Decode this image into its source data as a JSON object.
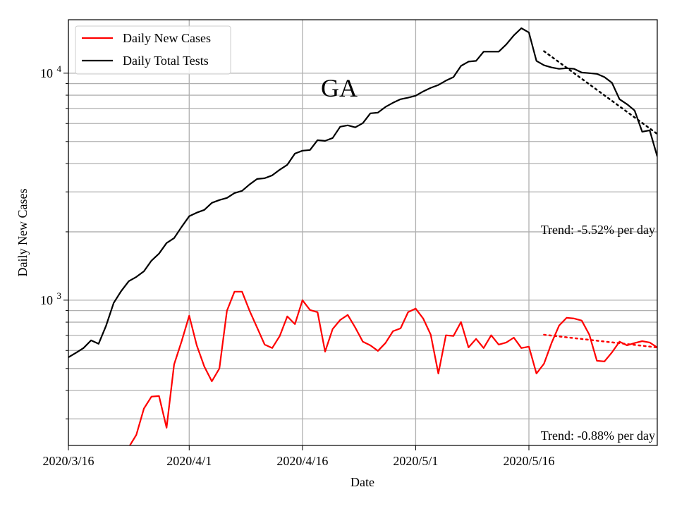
{
  "chart_data": {
    "type": "line",
    "title": "GA",
    "xlabel": "Date",
    "ylabel": "Daily New Cases",
    "yscale": "log",
    "ylim": [
      229,
      17200
    ],
    "grid": true,
    "legend_placement": "top-left",
    "x_ticks": [
      "2020/3/16",
      "2020/4/1",
      "2020/4/16",
      "2020/5/1",
      "2020/5/16"
    ],
    "y_ticks": [
      {
        "value": 1000,
        "base": "10",
        "exp": "3"
      },
      {
        "value": 10000,
        "base": "10",
        "exp": "4"
      }
    ],
    "dates": [
      "2020/3/16",
      "2020/3/17",
      "2020/3/18",
      "2020/3/19",
      "2020/3/20",
      "2020/3/21",
      "2020/3/22",
      "2020/3/23",
      "2020/3/24",
      "2020/3/25",
      "2020/3/26",
      "2020/3/27",
      "2020/3/28",
      "2020/3/29",
      "2020/3/30",
      "2020/3/31",
      "2020/4/1",
      "2020/4/2",
      "2020/4/3",
      "2020/4/4",
      "2020/4/5",
      "2020/4/6",
      "2020/4/7",
      "2020/4/8",
      "2020/4/9",
      "2020/4/10",
      "2020/4/11",
      "2020/4/12",
      "2020/4/13",
      "2020/4/14",
      "2020/4/15",
      "2020/4/16",
      "2020/4/17",
      "2020/4/18",
      "2020/4/19",
      "2020/4/20",
      "2020/4/21",
      "2020/4/22",
      "2020/4/23",
      "2020/4/24",
      "2020/4/25",
      "2020/4/26",
      "2020/4/27",
      "2020/4/28",
      "2020/4/29",
      "2020/4/30",
      "2020/5/1",
      "2020/5/2",
      "2020/5/3",
      "2020/5/4",
      "2020/5/5",
      "2020/5/6",
      "2020/5/7",
      "2020/5/8",
      "2020/5/9",
      "2020/5/10",
      "2020/5/11",
      "2020/5/12",
      "2020/5/13",
      "2020/5/14",
      "2020/5/15",
      "2020/5/16",
      "2020/5/17",
      "2020/5/18",
      "2020/5/19",
      "2020/5/20",
      "2020/5/21",
      "2020/5/22",
      "2020/5/23",
      "2020/5/24",
      "2020/5/25",
      "2020/5/26",
      "2020/5/27",
      "2020/5/28",
      "2020/5/29",
      "2020/5/30",
      "2020/5/31",
      "2020/6/1",
      "2020/6/2"
    ],
    "series": [
      {
        "name": "Daily New Cases",
        "color": "#ff0000",
        "values": [
          null,
          null,
          null,
          null,
          null,
          null,
          null,
          null,
          225,
          255,
          333,
          376,
          378,
          274,
          521,
          660,
          854,
          632,
          510,
          439,
          500,
          898,
          1090,
          1090,
          898,
          757,
          637,
          615,
          695,
          848,
          784,
          1000,
          905,
          885,
          593,
          746,
          818,
          861,
          757,
          656,
          632,
          598,
          647,
          730,
          751,
          885,
          918,
          830,
          704,
          475,
          700,
          695,
          801,
          619,
          675,
          615,
          700,
          637,
          651,
          684,
          615,
          624,
          475,
          525,
          647,
          773,
          836,
          830,
          813,
          704,
          541,
          537,
          589,
          656,
          632,
          647,
          660,
          651,
          619
        ]
      },
      {
        "name": "Daily Total Tests",
        "color": "#000000",
        "values": [
          560,
          586,
          615,
          665,
          642,
          773,
          972,
          1097,
          1213,
          1266,
          1340,
          1493,
          1604,
          1785,
          1877,
          2104,
          2343,
          2430,
          2499,
          2684,
          2762,
          2822,
          2964,
          3030,
          3234,
          3420,
          3445,
          3546,
          3755,
          3948,
          4425,
          4555,
          4589,
          5070,
          5032,
          5180,
          5808,
          5891,
          5770,
          6024,
          6654,
          6700,
          7100,
          7410,
          7680,
          7800,
          7960,
          8310,
          8620,
          8870,
          9270,
          9610,
          10770,
          11250,
          11330,
          12440,
          12440,
          12440,
          13380,
          14680,
          15790,
          15110,
          11330,
          10840,
          10600,
          10450,
          10520,
          10450,
          10070,
          10000,
          9930,
          9610,
          9070,
          7680,
          7300,
          6850,
          5520,
          5600,
          4300
        ]
      }
    ],
    "trends": [
      {
        "label": "Trend: -5.52% per day",
        "color": "#000000",
        "start_date": "2020/5/18",
        "end_date": "2020/6/2",
        "start_value": 12500,
        "end_value": 5400
      },
      {
        "label": "Trend: -0.88% per day",
        "color": "#ff0000",
        "start_date": "2020/5/18",
        "end_date": "2020/6/2",
        "start_value": 704,
        "end_value": 619
      }
    ]
  }
}
